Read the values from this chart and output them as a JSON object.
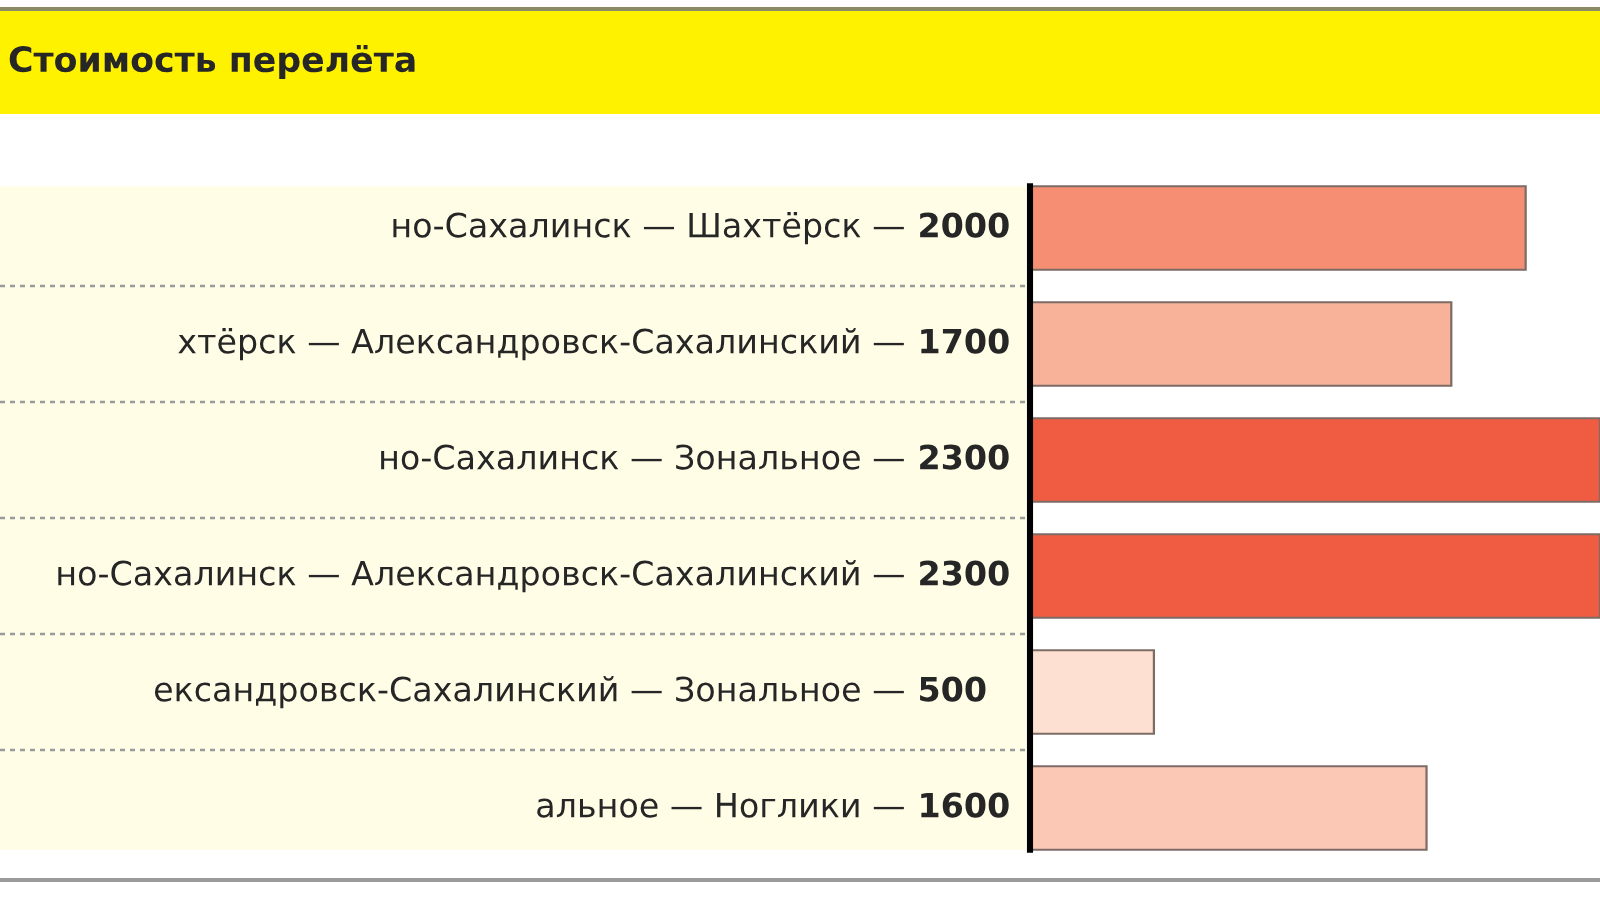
{
  "chart_data": {
    "type": "bar",
    "orientation": "horizontal",
    "title": "Стоимость перелёта",
    "categories": [
      "но-Сахалинск — Шахтёрск —",
      "хтёрск — Александровск-Сахалинский —",
      "но-Сахалинск — Зональное —",
      "но-Сахалинск — Александровск-Сахалинский —",
      "ександровск-Сахалинский — Зональное —",
      "альное — Ноглики —"
    ],
    "values": [
      2000,
      1700,
      2300,
      2300,
      500,
      1600
    ],
    "colors": [
      "#f58e72",
      "#f8b29a",
      "#f05c42",
      "#f05c42",
      "#fde0d2",
      "#fcc8b6"
    ],
    "data_labels": true
  }
}
